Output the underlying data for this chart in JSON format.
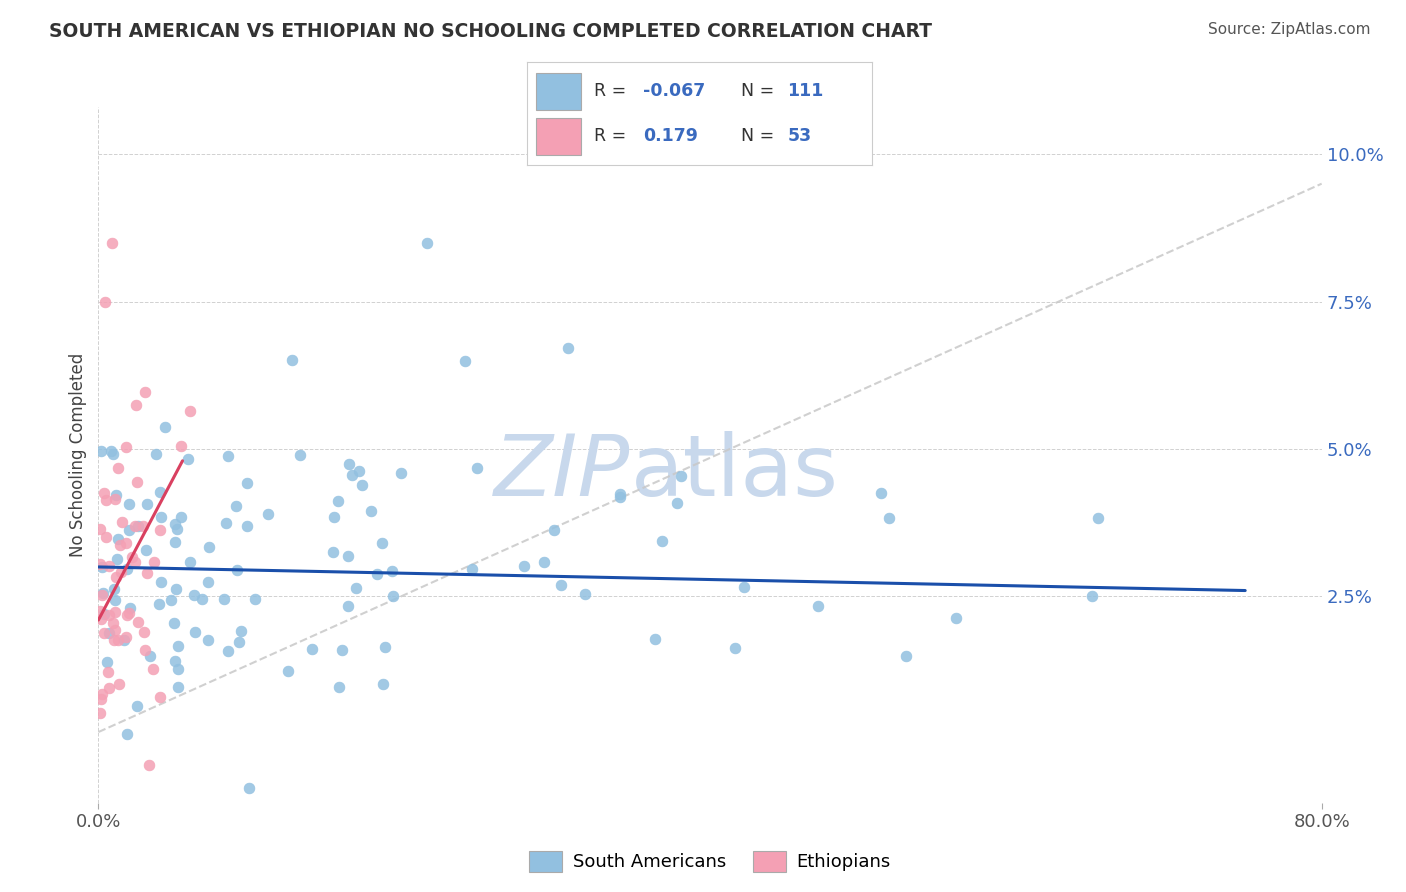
{
  "title": "SOUTH AMERICAN VS ETHIOPIAN NO SCHOOLING COMPLETED CORRELATION CHART",
  "source": "Source: ZipAtlas.com",
  "ylabel": "No Schooling Completed",
  "xlim": [
    0.0,
    0.8
  ],
  "ylim": [
    -0.01,
    0.108
  ],
  "x_tick_labels": [
    "0.0%",
    "80.0%"
  ],
  "y_ticks": [
    0.025,
    0.05,
    0.075,
    0.1
  ],
  "y_tick_labels": [
    "2.5%",
    "5.0%",
    "7.5%",
    "10.0%"
  ],
  "sa_color": "#92c0e0",
  "et_color": "#f4a0b4",
  "sa_line_color": "#1a4faa",
  "et_line_color": "#d94060",
  "diag_color": "#c8c8c8",
  "watermark_color": "#c8d8ec",
  "sa_R": -0.067,
  "sa_N": 111,
  "et_R": 0.179,
  "et_N": 53,
  "legend_sa": "South Americans",
  "legend_et": "Ethiopians",
  "title_color": "#333333",
  "source_color": "#555555",
  "ytick_color": "#3a6abf",
  "xtick_color": "#555555"
}
